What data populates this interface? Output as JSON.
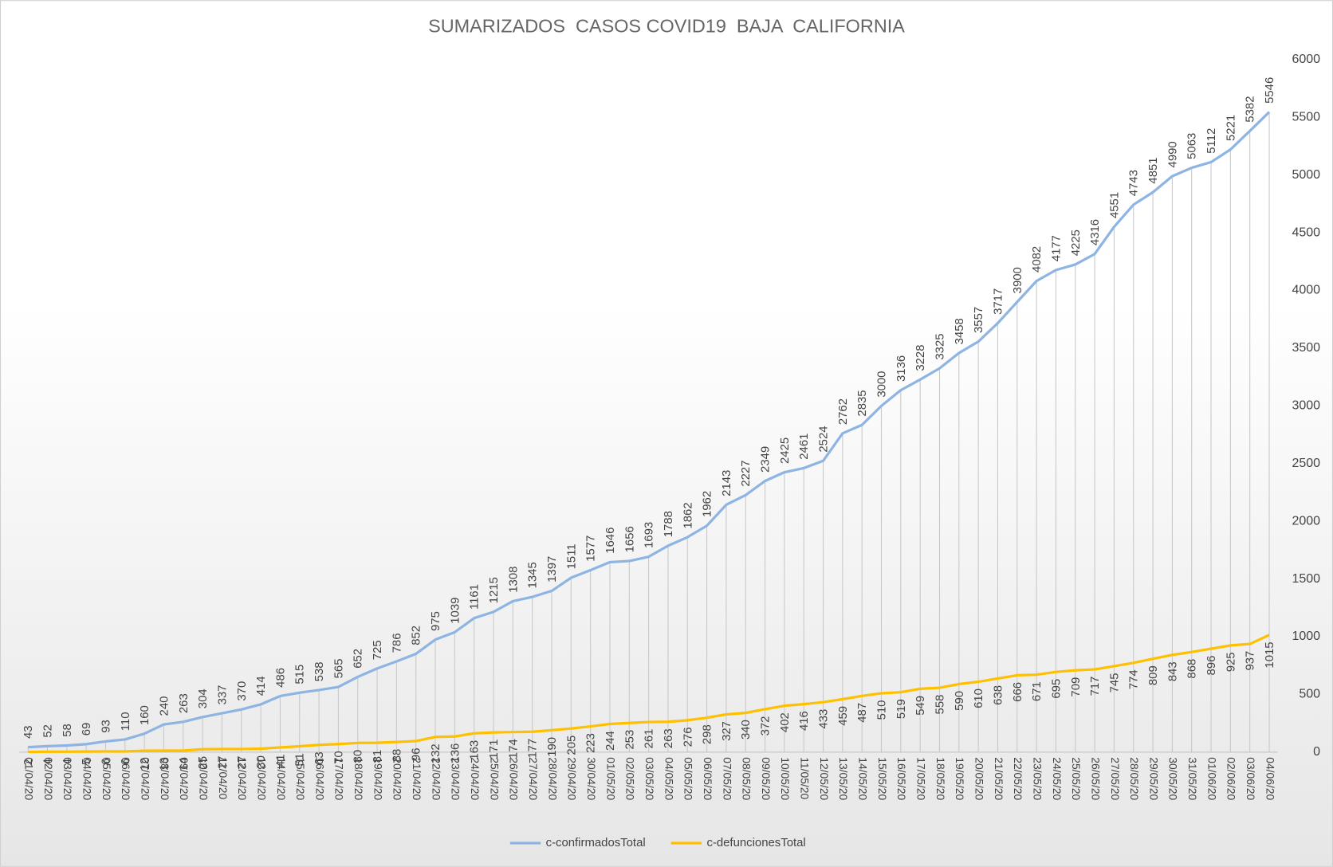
{
  "chart_data": {
    "type": "line",
    "title": "SUMARIZADOS  CASOS COVID19  BAJA  CALIFORNIA",
    "categories": [
      "01/04/20",
      "02/04/20",
      "03/04/20",
      "04/04/20",
      "05/04/20",
      "06/04/20",
      "07/04/20",
      "08/04/20",
      "09/04/20",
      "10/04/20",
      "11/04/20",
      "12/04/20",
      "13/04/20",
      "14/04/20",
      "15/04/20",
      "16/04/20",
      "17/04/20",
      "18/04/20",
      "19/04/20",
      "20/04/20",
      "21/04/20",
      "22/04/20",
      "23/04/20",
      "24/04/20",
      "25/04/20",
      "26/04/20",
      "27/04/20",
      "28/04/20",
      "29/04/20",
      "30/04/20",
      "01/05/20",
      "02/05/20",
      "03/05/20",
      "04/05/20",
      "05/05/20",
      "06/05/20",
      "07/05/20",
      "08/05/20",
      "09/05/20",
      "10/05/20",
      "11/05/20",
      "12/05/20",
      "13/05/20",
      "14/05/20",
      "15/05/20",
      "16/05/20",
      "17/05/20",
      "18/05/20",
      "19/05/20",
      "20/05/20",
      "21/05/20",
      "22/05/20",
      "23/05/20",
      "24/05/20",
      "25/05/20",
      "26/05/20",
      "27/05/20",
      "28/05/20",
      "29/05/20",
      "30/05/20",
      "31/05/20",
      "01/06/20",
      "02/06/20",
      "03/06/20",
      "04/06/20"
    ],
    "series": [
      {
        "name": "c-confirmadosTotal",
        "color": "#8eb4e3",
        "values": [
          43,
          52,
          58,
          69,
          93,
          110,
          160,
          240,
          263,
          304,
          337,
          370,
          414,
          486,
          515,
          538,
          565,
          652,
          725,
          786,
          852,
          975,
          1039,
          1161,
          1215,
          1308,
          1345,
          1397,
          1511,
          1577,
          1646,
          1656,
          1693,
          1788,
          1862,
          1962,
          2143,
          2227,
          2349,
          2425,
          2461,
          2524,
          2762,
          2835,
          3000,
          3136,
          3228,
          3325,
          3458,
          3557,
          3717,
          3900,
          4082,
          4177,
          4225,
          4316,
          4551,
          4743,
          4851,
          4990,
          5063,
          5112,
          5221,
          5382,
          5546
        ]
      },
      {
        "name": "c-defuncionesTotal",
        "color": "#ffc000",
        "values": [
          2,
          4,
          4,
          5,
          6,
          6,
          12,
          13,
          14,
          25,
          27,
          27,
          30,
          41,
          51,
          63,
          70,
          80,
          81,
          88,
          96,
          132,
          136,
          163,
          171,
          174,
          177,
          190,
          205,
          223,
          244,
          253,
          261,
          263,
          276,
          298,
          327,
          340,
          372,
          402,
          416,
          433,
          459,
          487,
          510,
          519,
          549,
          558,
          590,
          610,
          638,
          666,
          671,
          695,
          709,
          717,
          745,
          774,
          809,
          843,
          868,
          896,
          925,
          937,
          1015
        ]
      }
    ],
    "ylim": [
      0,
      6000
    ],
    "yticks": [
      0,
      500,
      1000,
      1500,
      2000,
      2500,
      3000,
      3500,
      4000,
      4500,
      5000,
      5500,
      6000
    ],
    "y_axis_side": "right",
    "legend": "bottom"
  }
}
